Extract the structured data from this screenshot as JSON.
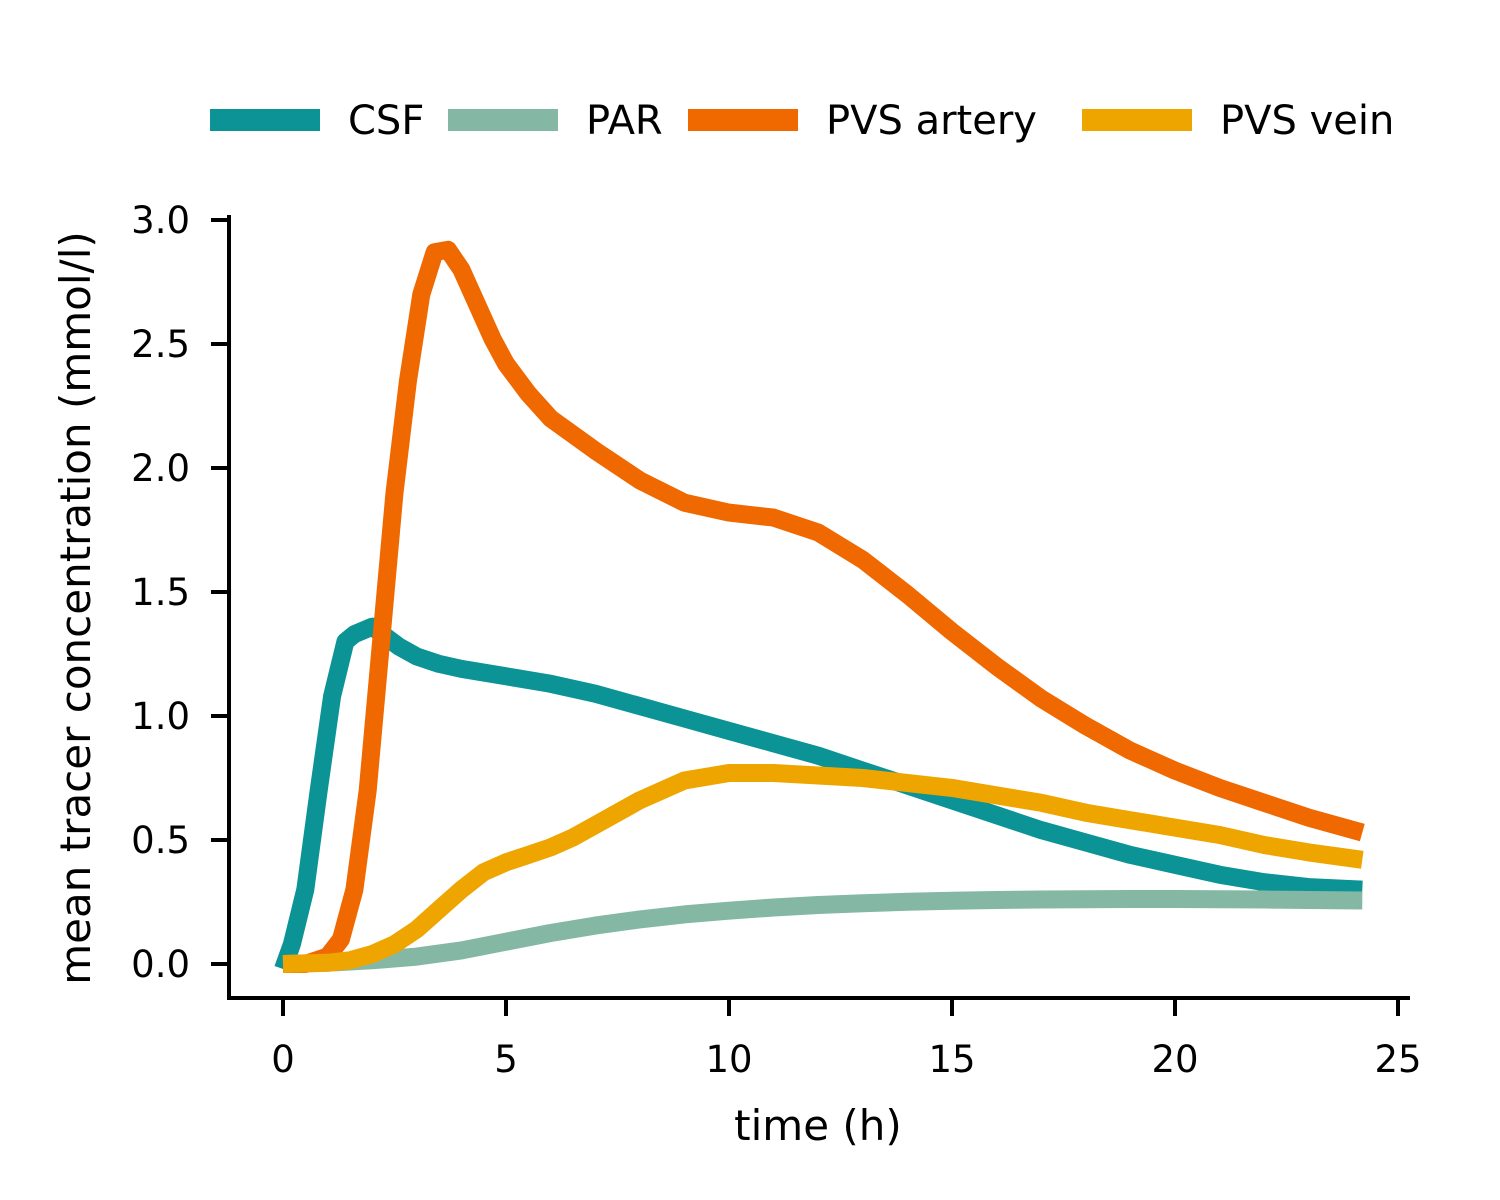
{
  "chart_data": {
    "type": "line",
    "xlabel": "time (h)",
    "ylabel": "mean tracer concentration (mmol/l)",
    "xlim": [
      -1.2,
      25.2
    ],
    "ylim": [
      -0.14,
      3.0
    ],
    "x_ticks": [
      0,
      5,
      10,
      15,
      20,
      25
    ],
    "x_tick_labels": [
      "0",
      "5",
      "10",
      "15",
      "20",
      "25"
    ],
    "y_ticks": [
      0.0,
      0.5,
      1.0,
      1.5,
      2.0,
      2.5,
      3.0
    ],
    "y_tick_labels": [
      "0.0",
      "0.5",
      "1.0",
      "1.5",
      "2.0",
      "2.5",
      "3.0"
    ],
    "grid": false,
    "legend_position": "top",
    "series": [
      {
        "name": "CSF",
        "color": "#0b9396",
        "x": [
          0,
          0.2,
          0.5,
          0.8,
          1.1,
          1.4,
          1.6,
          2.0,
          2.3,
          2.6,
          3.0,
          3.5,
          4.0,
          5.0,
          6.0,
          7.0,
          8.0,
          9.0,
          10.0,
          11.0,
          12.0,
          13.0,
          14.0,
          15.0,
          16.0,
          17.0,
          18.0,
          19.0,
          20.0,
          21.0,
          22.0,
          23.0,
          24.2
        ],
        "values": [
          -0.02,
          0.08,
          0.3,
          0.7,
          1.08,
          1.3,
          1.33,
          1.36,
          1.32,
          1.28,
          1.24,
          1.21,
          1.19,
          1.16,
          1.13,
          1.09,
          1.04,
          0.99,
          0.94,
          0.89,
          0.84,
          0.78,
          0.72,
          0.66,
          0.6,
          0.54,
          0.49,
          0.44,
          0.4,
          0.36,
          0.33,
          0.31,
          0.3
        ]
      },
      {
        "name": "PAR",
        "color": "#84b8a4",
        "x": [
          0,
          1.0,
          2.0,
          3.0,
          4.0,
          5.0,
          6.0,
          7.0,
          8.0,
          9.0,
          10.0,
          11.0,
          12.0,
          13.0,
          14.0,
          15.0,
          16.0,
          17.0,
          18.0,
          19.0,
          20.0,
          21.0,
          22.0,
          23.0,
          24.2
        ],
        "values": [
          0.0,
          0.005,
          0.015,
          0.03,
          0.055,
          0.09,
          0.125,
          0.155,
          0.18,
          0.2,
          0.215,
          0.228,
          0.238,
          0.245,
          0.251,
          0.255,
          0.258,
          0.26,
          0.261,
          0.262,
          0.262,
          0.261,
          0.26,
          0.258,
          0.256
        ]
      },
      {
        "name": "PVS artery",
        "color": "#f06800",
        "x": [
          0,
          0.5,
          1.0,
          1.3,
          1.6,
          1.9,
          2.2,
          2.5,
          2.8,
          3.1,
          3.4,
          3.7,
          4.0,
          4.3,
          4.7,
          5.0,
          5.5,
          6.0,
          7.0,
          8.0,
          9.0,
          10.0,
          11.0,
          12.0,
          13.0,
          14.0,
          15.0,
          16.0,
          17.0,
          18.0,
          19.0,
          20.0,
          21.0,
          22.0,
          23.0,
          24.2
        ],
        "values": [
          0.0,
          0.0,
          0.03,
          0.1,
          0.3,
          0.7,
          1.3,
          1.9,
          2.35,
          2.7,
          2.87,
          2.88,
          2.8,
          2.68,
          2.52,
          2.42,
          2.3,
          2.2,
          2.07,
          1.95,
          1.86,
          1.82,
          1.8,
          1.74,
          1.63,
          1.49,
          1.34,
          1.2,
          1.07,
          0.96,
          0.86,
          0.78,
          0.71,
          0.65,
          0.59,
          0.53
        ]
      },
      {
        "name": "PVS vein",
        "color": "#efa500",
        "x": [
          0,
          1.0,
          1.5,
          2.0,
          2.5,
          3.0,
          3.5,
          4.0,
          4.5,
          5.0,
          5.5,
          6.0,
          6.5,
          7.0,
          8.0,
          9.0,
          10.0,
          11.0,
          12.0,
          13.0,
          14.0,
          15.0,
          16.0,
          17.0,
          18.0,
          19.0,
          20.0,
          21.0,
          22.0,
          23.0,
          24.2
        ],
        "values": [
          0.0,
          0.005,
          0.015,
          0.04,
          0.08,
          0.14,
          0.22,
          0.3,
          0.37,
          0.41,
          0.44,
          0.47,
          0.51,
          0.56,
          0.66,
          0.74,
          0.77,
          0.77,
          0.76,
          0.75,
          0.73,
          0.71,
          0.68,
          0.65,
          0.61,
          0.58,
          0.55,
          0.52,
          0.48,
          0.45,
          0.42
        ]
      }
    ]
  }
}
